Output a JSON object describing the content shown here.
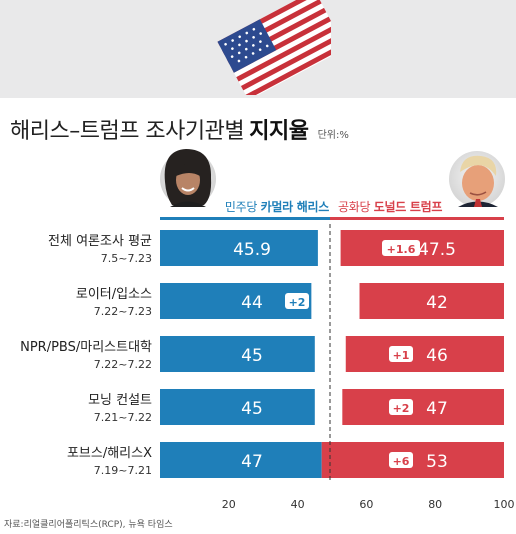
{
  "title": {
    "main": "해리스–트럼프 조사기관별",
    "bold": "지지율",
    "unit": "단위:%"
  },
  "legend": {
    "dem_prefix": "민주당",
    "dem_name": "카멀라 해리스",
    "rep_prefix": "공화당",
    "rep_name": "도널드 트럼프"
  },
  "source": "자료:리얼클리어폴리틱스(RCP), 뉴욕 타임스",
  "colors": {
    "dem": "#1f7fb9",
    "rep": "#d8404a",
    "background": "#e9e9ea",
    "panel": "#ffffff"
  },
  "chart_data": {
    "type": "bar",
    "orientation": "horizontal",
    "layout": "diverging",
    "xlim": [
      0,
      100
    ],
    "xticks": [
      20,
      40,
      60,
      80,
      100
    ],
    "midline": 50,
    "grid": false,
    "categories": [
      {
        "name": "전체 여론조사 평균",
        "dates": "7.5~7.23"
      },
      {
        "name": "로이터/입소스",
        "dates": "7.22~7.23"
      },
      {
        "name": "NPR/PBS/마리스트대학",
        "dates": "7.22~7.22"
      },
      {
        "name": "모닝 컨설트",
        "dates": "7.21~7.22"
      },
      {
        "name": "포브스/해리스X",
        "dates": "7.19~7.21"
      }
    ],
    "series": [
      {
        "name": "민주당 카멀라 해리스",
        "values": [
          45.9,
          44,
          45,
          45,
          47
        ],
        "labels": [
          "45.9",
          "44",
          "45",
          "45",
          "47"
        ],
        "leads": [
          "",
          "+2",
          "",
          "",
          ""
        ]
      },
      {
        "name": "공화당 도널드 트럼프",
        "values": [
          47.5,
          42,
          46,
          47,
          53
        ],
        "labels": [
          "47.5",
          "42",
          "46",
          "47",
          "53"
        ],
        "leads": [
          "+1.6",
          "",
          "+1",
          "+2",
          "+6"
        ]
      }
    ]
  }
}
